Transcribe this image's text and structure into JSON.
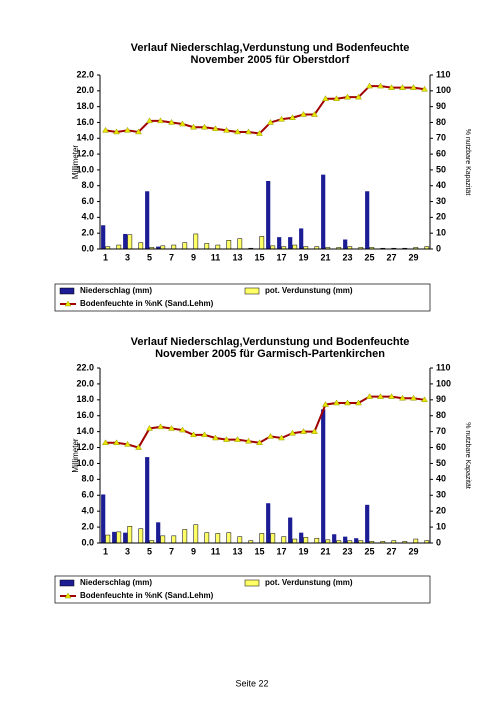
{
  "chart_data": [
    {
      "type": "bar-line",
      "title": "Verlauf Niederschlag,Verdunstung und Bodenfeuchte",
      "subtitle": "November 2005 für Oberstdorf",
      "y_label": "Millimeter",
      "y2_label": "% nutzbare Kapazität",
      "categories": [
        "1",
        null,
        "3",
        null,
        "5",
        null,
        "7",
        null,
        "9",
        null,
        "11",
        null,
        "13",
        null,
        "15",
        null,
        "17",
        null,
        "19",
        null,
        "21",
        null,
        "23",
        null,
        "25",
        null,
        "27",
        null,
        "29",
        null
      ],
      "ylim": [
        0,
        22
      ],
      "yticks": [
        {
          "value": 0,
          "label": "0.0"
        },
        {
          "value": 2,
          "label": "2.0"
        },
        {
          "value": 4,
          "label": "4.0"
        },
        {
          "value": 6,
          "label": "6.0"
        },
        {
          "value": 8,
          "label": "8.0"
        },
        {
          "value": 10,
          "label": "10.0"
        },
        {
          "value": 12,
          "label": "12.0"
        },
        {
          "value": 14,
          "label": "14.0"
        },
        {
          "value": 16,
          "label": "16.0"
        },
        {
          "value": 18,
          "label": "18.0"
        },
        {
          "value": 20,
          "label": "20.0"
        },
        {
          "value": 22,
          "label": "22.0"
        }
      ],
      "y2lim": [
        0,
        110
      ],
      "y2ticks": [
        0,
        10,
        20,
        30,
        40,
        50,
        60,
        70,
        80,
        90,
        100,
        110
      ],
      "series": [
        {
          "name": "Niederschlag (mm)",
          "color": "#1c1c94",
          "values": [
            3.0,
            0,
            1.9,
            0,
            7.3,
            0.3,
            0,
            0,
            0,
            0,
            0,
            0,
            0,
            0,
            0,
            8.6,
            1.5,
            1.5,
            2.6,
            0,
            9.4,
            0,
            1.2,
            0,
            7.3,
            0,
            0,
            0,
            0,
            0
          ]
        },
        {
          "name": "pot. Verdunstung (mm)",
          "color": "#ffff66",
          "values": [
            0.3,
            0.5,
            1.8,
            0.8,
            0.2,
            0.4,
            0.5,
            0.8,
            1.9,
            0.7,
            0.5,
            1.1,
            1.3,
            0.1,
            1.6,
            0.4,
            0.3,
            0.5,
            0.3,
            0.3,
            0.2,
            0.2,
            0.3,
            0.2,
            0.2,
            0.1,
            0.1,
            0.1,
            0.2,
            0.3
          ]
        },
        {
          "name": "Bodenfeuchte in %nK (Sand.Lehm)",
          "color": "#a00000",
          "marker_color": "#e6e600",
          "axis": "y2",
          "values": [
            75,
            74,
            75,
            74,
            81,
            81,
            80,
            79,
            77,
            77,
            76,
            75,
            74,
            74,
            73,
            80,
            82,
            83,
            85,
            85,
            95,
            95,
            96,
            96,
            103,
            103,
            102,
            102,
            102,
            101
          ]
        }
      ]
    },
    {
      "type": "bar-line",
      "title": "Verlauf Niederschlag,Verdunstung und Bodenfeuchte",
      "subtitle": "November 2005 für Garmisch-Partenkirchen",
      "y_label": "Millimeter",
      "y2_label": "% nutzbare Kapazität",
      "categories": [
        "1",
        null,
        "3",
        null,
        "5",
        null,
        "7",
        null,
        "9",
        null,
        "11",
        null,
        "13",
        null,
        "15",
        null,
        "17",
        null,
        "19",
        null,
        "21",
        null,
        "23",
        null,
        "25",
        null,
        "27",
        null,
        "29",
        null
      ],
      "ylim": [
        0,
        22
      ],
      "yticks": [
        {
          "value": 0,
          "label": "0.0"
        },
        {
          "value": 2,
          "label": "2.0"
        },
        {
          "value": 4,
          "label": "4.0"
        },
        {
          "value": 6,
          "label": "6.0"
        },
        {
          "value": 8,
          "label": "8.0"
        },
        {
          "value": 10,
          "label": "10.0"
        },
        {
          "value": 12,
          "label": "12.0"
        },
        {
          "value": 14,
          "label": "14.0"
        },
        {
          "value": 16,
          "label": "16.0"
        },
        {
          "value": 18,
          "label": "18.0"
        },
        {
          "value": 20,
          "label": "20.0"
        },
        {
          "value": 22,
          "label": "22.0"
        }
      ],
      "y2lim": [
        0,
        110
      ],
      "y2ticks": [
        0,
        10,
        20,
        30,
        40,
        50,
        60,
        70,
        80,
        90,
        100,
        110
      ],
      "series": [
        {
          "name": "Niederschlag (mm)",
          "color": "#1c1c94",
          "values": [
            6.1,
            1.4,
            1.3,
            0,
            10.8,
            2.6,
            0,
            0,
            0,
            0,
            0,
            0,
            0,
            0,
            0,
            5.0,
            0,
            3.2,
            1.3,
            0,
            16.8,
            1.1,
            0.8,
            0.6,
            4.8,
            0,
            0,
            0,
            0,
            0
          ]
        },
        {
          "name": "pot. Verdunstung (mm)",
          "color": "#ffff66",
          "values": [
            1.0,
            1.4,
            2.1,
            1.8,
            0.3,
            0.9,
            0.9,
            1.7,
            2.3,
            1.3,
            1.2,
            1.3,
            0.8,
            0.3,
            1.2,
            1.2,
            0.8,
            0.5,
            0.7,
            0.6,
            0.4,
            0.3,
            0.3,
            0.3,
            0.2,
            0.2,
            0.3,
            0.2,
            0.5,
            0.3
          ]
        },
        {
          "name": "Bodenfeuchte in %nK (Sand.Lehm)",
          "color": "#a00000",
          "marker_color": "#e6e600",
          "axis": "y2",
          "values": [
            63,
            63,
            62,
            60,
            72,
            73,
            72,
            71,
            68,
            68,
            66,
            65,
            65,
            64,
            63,
            67,
            66,
            69,
            70,
            70,
            87,
            88,
            88,
            88,
            92,
            92,
            92,
            91,
            91,
            90
          ]
        }
      ]
    }
  ],
  "footer": {
    "page": "Seite 22"
  }
}
